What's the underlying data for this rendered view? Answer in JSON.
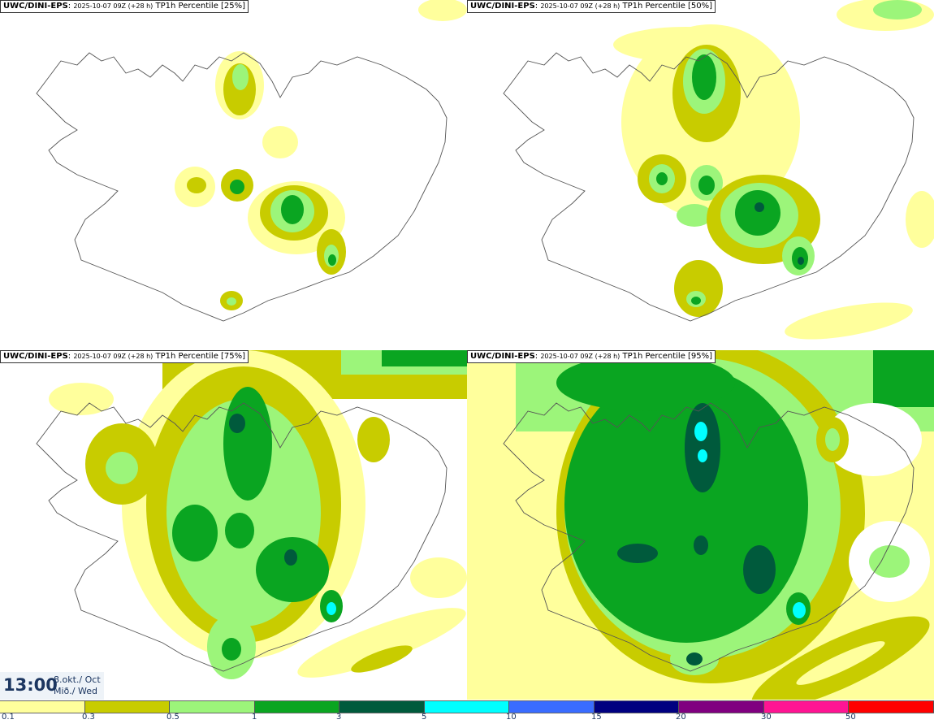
{
  "panels": [
    {
      "model": "UWC/DINI-EPS",
      "timestamp": "2025-10-07 09Z (+28 h)",
      "field": "TP1h Percentile [25%]"
    },
    {
      "model": "UWC/DINI-EPS",
      "timestamp": "2025-10-07 09Z (+28 h)",
      "field": "TP1h Percentile [50%]"
    },
    {
      "model": "UWC/DINI-EPS",
      "timestamp": "2025-10-07 09Z (+28 h)",
      "field": "TP1h Percentile [75%]"
    },
    {
      "model": "UWC/DINI-EPS",
      "timestamp": "2025-10-07 09Z (+28 h)",
      "field": "TP1h Percentile [95%]"
    }
  ],
  "time": {
    "clock": "13:00",
    "date_line1": "8.okt./ Oct",
    "date_line2": "Mið./ Wed"
  },
  "legend": {
    "labels": [
      "0.1",
      "0.3",
      "0.5",
      "1",
      "3",
      "5",
      "10",
      "15",
      "20",
      "30",
      "50"
    ],
    "colors": [
      "#ffff9c",
      "#c8cc00",
      "#9cf57a",
      "#0aa521",
      "#005a3c",
      "#00ffff",
      "#3a6cff",
      "#000080",
      "#800080",
      "#ff1493",
      "#ff0000"
    ]
  },
  "palette": {
    "yellow": "#ffff9c",
    "olive": "#c8cc00",
    "light_green": "#9cf57a",
    "green": "#0aa521",
    "dark_green": "#005a3c",
    "cyan": "#00ffff"
  }
}
